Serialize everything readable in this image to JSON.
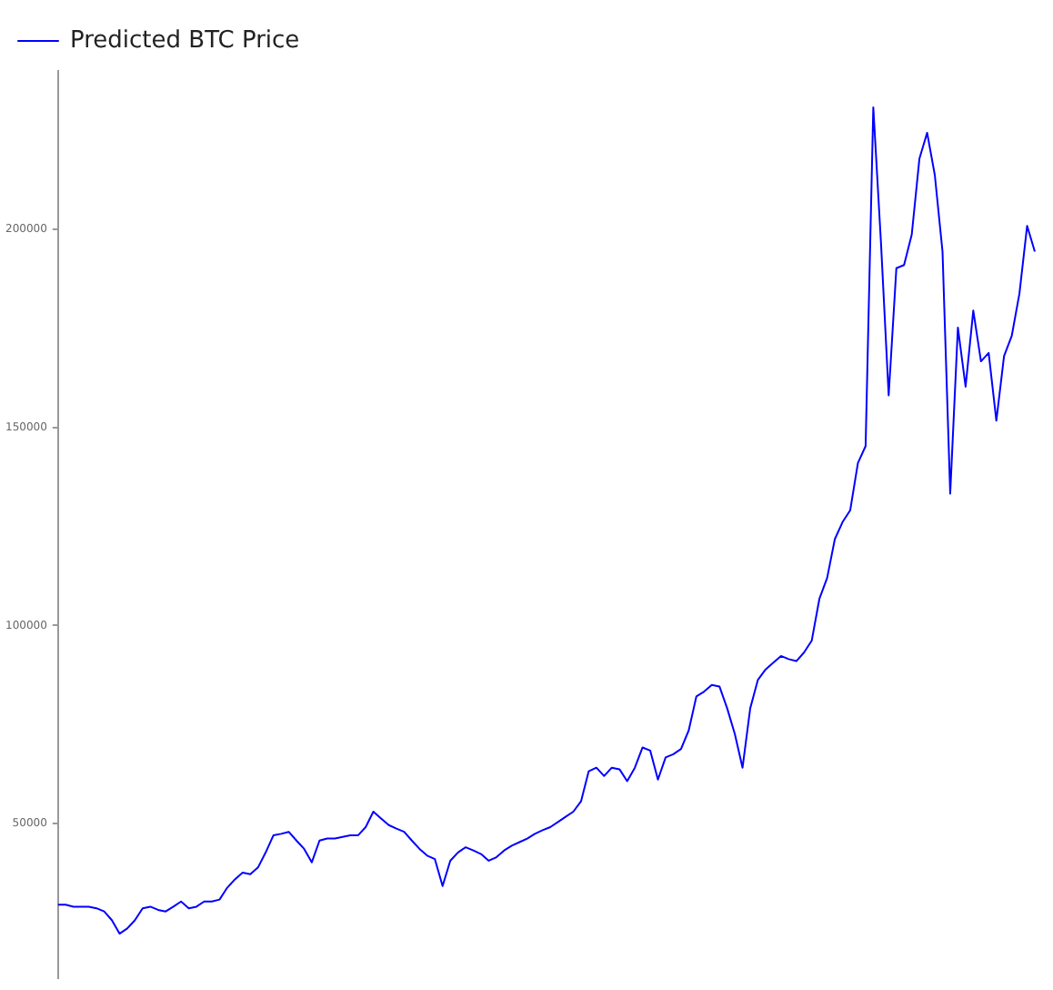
{
  "chart_data": {
    "type": "line",
    "legend": "top left",
    "grid": false,
    "tick_labels": "y",
    "marker": "none",
    "line_style": "solid",
    "categories": [
      null,
      null,
      null,
      null,
      null,
      null,
      null,
      null,
      null,
      null,
      null,
      null,
      null,
      null,
      null,
      null,
      null,
      null,
      null,
      null,
      null,
      null,
      null,
      null,
      null,
      null,
      null,
      null,
      null,
      null,
      null,
      null,
      null,
      null,
      null,
      null,
      null,
      null,
      null,
      null,
      null,
      null,
      null,
      null,
      null,
      null,
      null,
      null,
      null,
      null,
      null,
      null,
      null,
      null,
      null,
      null,
      null,
      null,
      null,
      null,
      null,
      null,
      null,
      null,
      null,
      null,
      null,
      null,
      null,
      null,
      null,
      null,
      null,
      null,
      null,
      null,
      null,
      null,
      null,
      null,
      null,
      null,
      null,
      null,
      null,
      null,
      null,
      null,
      null,
      null,
      null,
      null,
      null,
      null,
      null,
      null,
      null,
      null,
      null,
      null,
      null,
      null,
      null,
      null,
      null,
      null,
      null,
      null,
      null,
      null,
      null,
      null,
      null,
      null,
      null,
      null,
      null,
      null,
      null,
      null,
      null,
      null,
      null,
      null,
      null,
      null,
      null,
      null
    ],
    "ylim": [
      11000,
      240000
    ],
    "yticks": [
      50000,
      100000,
      150000,
      200000
    ],
    "series": [
      {
        "name": "Predicted BTC Price",
        "color": "#0000ff",
        "values": [
          29500,
          29500,
          29000,
          29000,
          29000,
          28600,
          27800,
          25600,
          22200,
          23500,
          25600,
          28600,
          29000,
          28200,
          27800,
          29000,
          30300,
          28600,
          29000,
          30300,
          30300,
          30800,
          33800,
          35900,
          37600,
          37200,
          38900,
          42700,
          47000,
          47400,
          47900,
          45700,
          43600,
          40200,
          45700,
          46200,
          46200,
          46600,
          47000,
          47000,
          49100,
          53000,
          51300,
          49600,
          48700,
          47900,
          45700,
          43600,
          41900,
          41000,
          34200,
          40600,
          42700,
          44000,
          43200,
          42300,
          40600,
          41500,
          43200,
          44400,
          45300,
          46200,
          47400,
          48300,
          49100,
          50400,
          51700,
          53000,
          55600,
          63200,
          64100,
          62000,
          64100,
          63700,
          60700,
          64100,
          69200,
          68400,
          61100,
          66700,
          67500,
          68800,
          73500,
          82100,
          83300,
          85000,
          84600,
          79100,
          72600,
          64100,
          79100,
          86300,
          88900,
          90600,
          92300,
          91500,
          91000,
          93200,
          96200,
          106800,
          112000,
          121800,
          126100,
          129100,
          141000,
          145300,
          230800,
          196600,
          158100,
          190200,
          191000,
          198700,
          217900,
          224400,
          213700,
          194400,
          133300,
          175200,
          160300,
          179500,
          166700,
          168800,
          151700,
          168000,
          173100,
          183800,
          200900,
          194400
        ]
      }
    ]
  }
}
